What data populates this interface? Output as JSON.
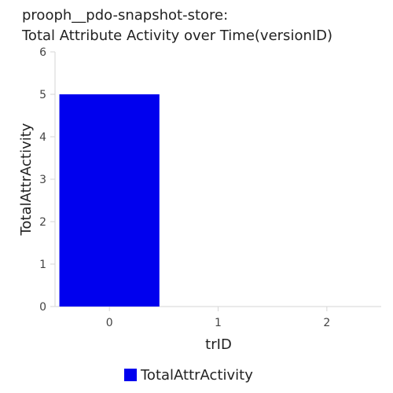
{
  "chart_data": {
    "type": "bar",
    "title_lines": [
      "prooph__pdo-snapshot-store:",
      "Total Attribute Activity over Time(versionID)"
    ],
    "xlabel": "trID",
    "ylabel": "TotalAttrActivity",
    "categories": [
      "0",
      "1",
      "2"
    ],
    "series": [
      {
        "name": "TotalAttrActivity",
        "values": [
          5,
          0,
          0
        ],
        "color": "#0000ee"
      }
    ],
    "ylim": [
      0,
      6
    ],
    "yticks": [
      "0",
      "1",
      "2",
      "3",
      "4",
      "5",
      "6"
    ],
    "grid": false,
    "legend_position": "bottom-center"
  }
}
